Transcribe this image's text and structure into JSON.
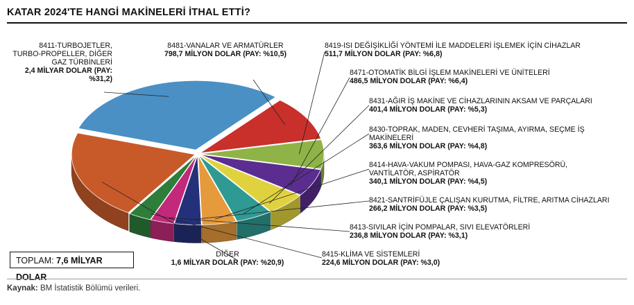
{
  "title": "KATAR 2024'TE HANGİ MAKİNELERİ İTHAL ETTİ?",
  "total": {
    "label": "TOPLAM:",
    "value": "7,6 MİLYAR DOLAR"
  },
  "source": {
    "label": "Kaynak:",
    "text": "BM İstatistik Bölümü verileri."
  },
  "chart_data": {
    "type": "pie",
    "title": "KATAR 2024'TE HANGİ MAKİNELERİ İTHAL ETTİ?",
    "unit": "milyon dolar",
    "slices": [
      {
        "name": "8411-TURBOJETLER, TURBO-PROPELLER, DİĞER GAZ TÜRBİNLERİ",
        "value_text": "2,4 MİLYAR DOLAR (PAY: %31,2)",
        "value": 2400,
        "share": 31.2,
        "color": "#4a90c4"
      },
      {
        "name": "8481-VANALAR VE ARMATÜRLER",
        "value_text": "798,7 MİLYON DOLAR (PAY: %10,5)",
        "value": 798.7,
        "share": 10.5,
        "color": "#c9302c"
      },
      {
        "name": "8419-ISI DEĞİŞİKLİĞİ YÖNTEMİ İLE MADDELERİ İŞLEMEK İÇİN CİHAZLAR",
        "value_text": "511,7 MİLYON DOLAR (PAY: %6,8)",
        "value": 511.7,
        "share": 6.8,
        "color": "#8fb347"
      },
      {
        "name": "8471-OTOMATİK BİLGİ İŞLEM MAKİNELERİ VE ÜNİTELERİ",
        "value_text": "486,5 MİLYON DOLAR (PAY: %6,4)",
        "value": 486.5,
        "share": 6.4,
        "color": "#5b2d91"
      },
      {
        "name": "8431-AĞIR İŞ MAKİNE VE CİHAZLARININ AKSAM VE PARÇALARI",
        "value_text": "401,4 MİLYON DOLAR (PAY: %5,3)",
        "value": 401.4,
        "share": 5.3,
        "color": "#e0d23f"
      },
      {
        "name": "8430-TOPRAK, MADEN, CEVHERİ TAŞIMA, AYIRMA, SEÇME İŞ MAKİNELERİ",
        "value_text": "363,6 MİLYON DOLAR (PAY: %4,8)",
        "value": 363.6,
        "share": 4.8,
        "color": "#2f9a93"
      },
      {
        "name": "8414-HAVA-VAKUM POMPASI, HAVA-GAZ KOMPRESÖRÜ, VANTİLATÖR, ASPİRATÖR",
        "value_text": "340,1 MİLYON DOLAR (PAY: %4,5)",
        "value": 340.1,
        "share": 4.5,
        "color": "#e59a3c"
      },
      {
        "name": "8421-SANTRİFÜJLE ÇALIŞAN KURUTMA, FİLTRE, ARITMA CİHAZLARI",
        "value_text": "266,2 MİLYON DOLAR (PAY: %3,5)",
        "value": 266.2,
        "share": 3.5,
        "color": "#24307a"
      },
      {
        "name": "8413-SIVILAR İÇİN POMPALAR, SIVI ELEVATÖRLERİ",
        "value_text": "236,8 MİLYON DOLAR (PAY: %3,1)",
        "value": 236.8,
        "share": 3.1,
        "color": "#c2297a"
      },
      {
        "name": "8415-KLİMA VE SİSTEMLERİ",
        "value_text": "224,6 MİLYON DOLAR (PAY: %3,0)",
        "value": 224.6,
        "share": 3.0,
        "color": "#2e7d3a"
      },
      {
        "name": "DİĞER",
        "value_text": "1,6 MİLYAR DOLAR (PAY: %20,9)",
        "value": 1600,
        "share": 20.9,
        "color": "#c85a2a"
      }
    ]
  }
}
